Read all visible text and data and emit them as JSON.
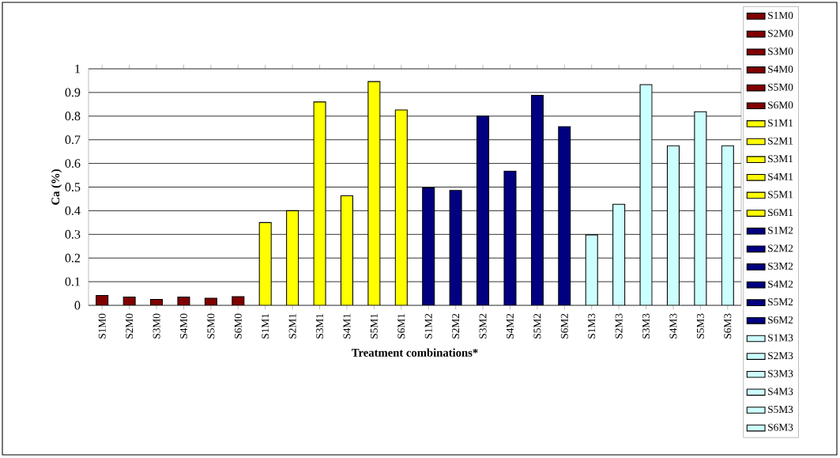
{
  "chart_data": {
    "type": "bar",
    "xlabel": "Treatment combinations*",
    "ylabel": "Ca (%)",
    "categories": [
      "S1M0",
      "S2M0",
      "S3M0",
      "S4M0",
      "S5M0",
      "S6M0",
      "S1M1",
      "S2M1",
      "S3M1",
      "S4M1",
      "S5M1",
      "S6M1",
      "S1M2",
      "S2M2",
      "S3M2",
      "S4M2",
      "S5M2",
      "S6M2",
      "S1M3",
      "S2M3",
      "S3M3",
      "S4M3",
      "S5M3",
      "S6M3"
    ],
    "ylim": [
      0,
      1
    ],
    "yticks": [
      0,
      0.1,
      0.2,
      0.3,
      0.4,
      0.5,
      0.6,
      0.7,
      0.8,
      0.9,
      1
    ],
    "grid": "y",
    "legend": "right",
    "series": [
      {
        "name": "S1M0",
        "color": "#800000",
        "values": [
          0.042,
          null,
          null,
          null,
          null,
          null,
          null,
          null,
          null,
          null,
          null,
          null,
          null,
          null,
          null,
          null,
          null,
          null,
          null,
          null,
          null,
          null,
          null,
          null
        ]
      },
      {
        "name": "S2M0",
        "color": "#800000",
        "values": [
          null,
          0.035,
          null,
          null,
          null,
          null,
          null,
          null,
          null,
          null,
          null,
          null,
          null,
          null,
          null,
          null,
          null,
          null,
          null,
          null,
          null,
          null,
          null,
          null
        ]
      },
      {
        "name": "S3M0",
        "color": "#800000",
        "values": [
          null,
          null,
          0.025,
          null,
          null,
          null,
          null,
          null,
          null,
          null,
          null,
          null,
          null,
          null,
          null,
          null,
          null,
          null,
          null,
          null,
          null,
          null,
          null,
          null
        ]
      },
      {
        "name": "S4M0",
        "color": "#800000",
        "values": [
          null,
          null,
          null,
          0.035,
          null,
          null,
          null,
          null,
          null,
          null,
          null,
          null,
          null,
          null,
          null,
          null,
          null,
          null,
          null,
          null,
          null,
          null,
          null,
          null
        ]
      },
      {
        "name": "S5M0",
        "color": "#800000",
        "values": [
          null,
          null,
          null,
          null,
          0.03,
          null,
          null,
          null,
          null,
          null,
          null,
          null,
          null,
          null,
          null,
          null,
          null,
          null,
          null,
          null,
          null,
          null,
          null,
          null
        ]
      },
      {
        "name": "S6M0",
        "color": "#800000",
        "values": [
          null,
          null,
          null,
          null,
          null,
          0.037,
          null,
          null,
          null,
          null,
          null,
          null,
          null,
          null,
          null,
          null,
          null,
          null,
          null,
          null,
          null,
          null,
          null,
          null
        ]
      },
      {
        "name": "S1M1",
        "color": "#ffff00",
        "values": [
          null,
          null,
          null,
          null,
          null,
          null,
          0.35,
          null,
          null,
          null,
          null,
          null,
          null,
          null,
          null,
          null,
          null,
          null,
          null,
          null,
          null,
          null,
          null,
          null
        ]
      },
      {
        "name": "S2M1",
        "color": "#ffff00",
        "values": [
          null,
          null,
          null,
          null,
          null,
          null,
          null,
          0.4,
          null,
          null,
          null,
          null,
          null,
          null,
          null,
          null,
          null,
          null,
          null,
          null,
          null,
          null,
          null,
          null
        ]
      },
      {
        "name": "S3M1",
        "color": "#ffff00",
        "values": [
          null,
          null,
          null,
          null,
          null,
          null,
          null,
          null,
          0.86,
          null,
          null,
          null,
          null,
          null,
          null,
          null,
          null,
          null,
          null,
          null,
          null,
          null,
          null,
          null
        ]
      },
      {
        "name": "S4M1",
        "color": "#ffff00",
        "values": [
          null,
          null,
          null,
          null,
          null,
          null,
          null,
          null,
          null,
          0.463,
          null,
          null,
          null,
          null,
          null,
          null,
          null,
          null,
          null,
          null,
          null,
          null,
          null,
          null
        ]
      },
      {
        "name": "S5M1",
        "color": "#ffff00",
        "values": [
          null,
          null,
          null,
          null,
          null,
          null,
          null,
          null,
          null,
          null,
          0.946,
          null,
          null,
          null,
          null,
          null,
          null,
          null,
          null,
          null,
          null,
          null,
          null,
          null
        ]
      },
      {
        "name": "S6M1",
        "color": "#ffff00",
        "values": [
          null,
          null,
          null,
          null,
          null,
          null,
          null,
          null,
          null,
          null,
          null,
          0.826,
          null,
          null,
          null,
          null,
          null,
          null,
          null,
          null,
          null,
          null,
          null,
          null
        ]
      },
      {
        "name": "S1M2",
        "color": "#000080",
        "values": [
          null,
          null,
          null,
          null,
          null,
          null,
          null,
          null,
          null,
          null,
          null,
          null,
          0.497,
          null,
          null,
          null,
          null,
          null,
          null,
          null,
          null,
          null,
          null,
          null
        ]
      },
      {
        "name": "S2M2",
        "color": "#000080",
        "values": [
          null,
          null,
          null,
          null,
          null,
          null,
          null,
          null,
          null,
          null,
          null,
          null,
          null,
          0.486,
          null,
          null,
          null,
          null,
          null,
          null,
          null,
          null,
          null,
          null
        ]
      },
      {
        "name": "S3M2",
        "color": "#000080",
        "values": [
          null,
          null,
          null,
          null,
          null,
          null,
          null,
          null,
          null,
          null,
          null,
          null,
          null,
          null,
          0.8,
          null,
          null,
          null,
          null,
          null,
          null,
          null,
          null,
          null
        ]
      },
      {
        "name": "S4M2",
        "color": "#000080",
        "values": [
          null,
          null,
          null,
          null,
          null,
          null,
          null,
          null,
          null,
          null,
          null,
          null,
          null,
          null,
          null,
          0.568,
          null,
          null,
          null,
          null,
          null,
          null,
          null,
          null
        ]
      },
      {
        "name": "S5M2",
        "color": "#000080",
        "values": [
          null,
          null,
          null,
          null,
          null,
          null,
          null,
          null,
          null,
          null,
          null,
          null,
          null,
          null,
          null,
          null,
          0.888,
          null,
          null,
          null,
          null,
          null,
          null,
          null
        ]
      },
      {
        "name": "S6M2",
        "color": "#000080",
        "values": [
          null,
          null,
          null,
          null,
          null,
          null,
          null,
          null,
          null,
          null,
          null,
          null,
          null,
          null,
          null,
          null,
          null,
          0.756,
          null,
          null,
          null,
          null,
          null,
          null
        ]
      },
      {
        "name": "S1M3",
        "color": "#ccffff",
        "values": [
          null,
          null,
          null,
          null,
          null,
          null,
          null,
          null,
          null,
          null,
          null,
          null,
          null,
          null,
          null,
          null,
          null,
          null,
          0.298,
          null,
          null,
          null,
          null,
          null
        ]
      },
      {
        "name": "S2M3",
        "color": "#ccffff",
        "values": [
          null,
          null,
          null,
          null,
          null,
          null,
          null,
          null,
          null,
          null,
          null,
          null,
          null,
          null,
          null,
          null,
          null,
          null,
          null,
          0.427,
          null,
          null,
          null,
          null
        ]
      },
      {
        "name": "S3M3",
        "color": "#ccffff",
        "values": [
          null,
          null,
          null,
          null,
          null,
          null,
          null,
          null,
          null,
          null,
          null,
          null,
          null,
          null,
          null,
          null,
          null,
          null,
          null,
          null,
          0.933,
          null,
          null,
          null
        ]
      },
      {
        "name": "S4M3",
        "color": "#ccffff",
        "values": [
          null,
          null,
          null,
          null,
          null,
          null,
          null,
          null,
          null,
          null,
          null,
          null,
          null,
          null,
          null,
          null,
          null,
          null,
          null,
          null,
          null,
          0.675,
          null,
          null
        ]
      },
      {
        "name": "S5M3",
        "color": "#ccffff",
        "values": [
          null,
          null,
          null,
          null,
          null,
          null,
          null,
          null,
          null,
          null,
          null,
          null,
          null,
          null,
          null,
          null,
          null,
          null,
          null,
          null,
          null,
          null,
          0.819,
          null
        ]
      },
      {
        "name": "S6M3",
        "color": "#ccffff",
        "values": [
          null,
          null,
          null,
          null,
          null,
          null,
          null,
          null,
          null,
          null,
          null,
          null,
          null,
          null,
          null,
          null,
          null,
          null,
          null,
          null,
          null,
          null,
          null,
          0.675
        ]
      }
    ]
  }
}
